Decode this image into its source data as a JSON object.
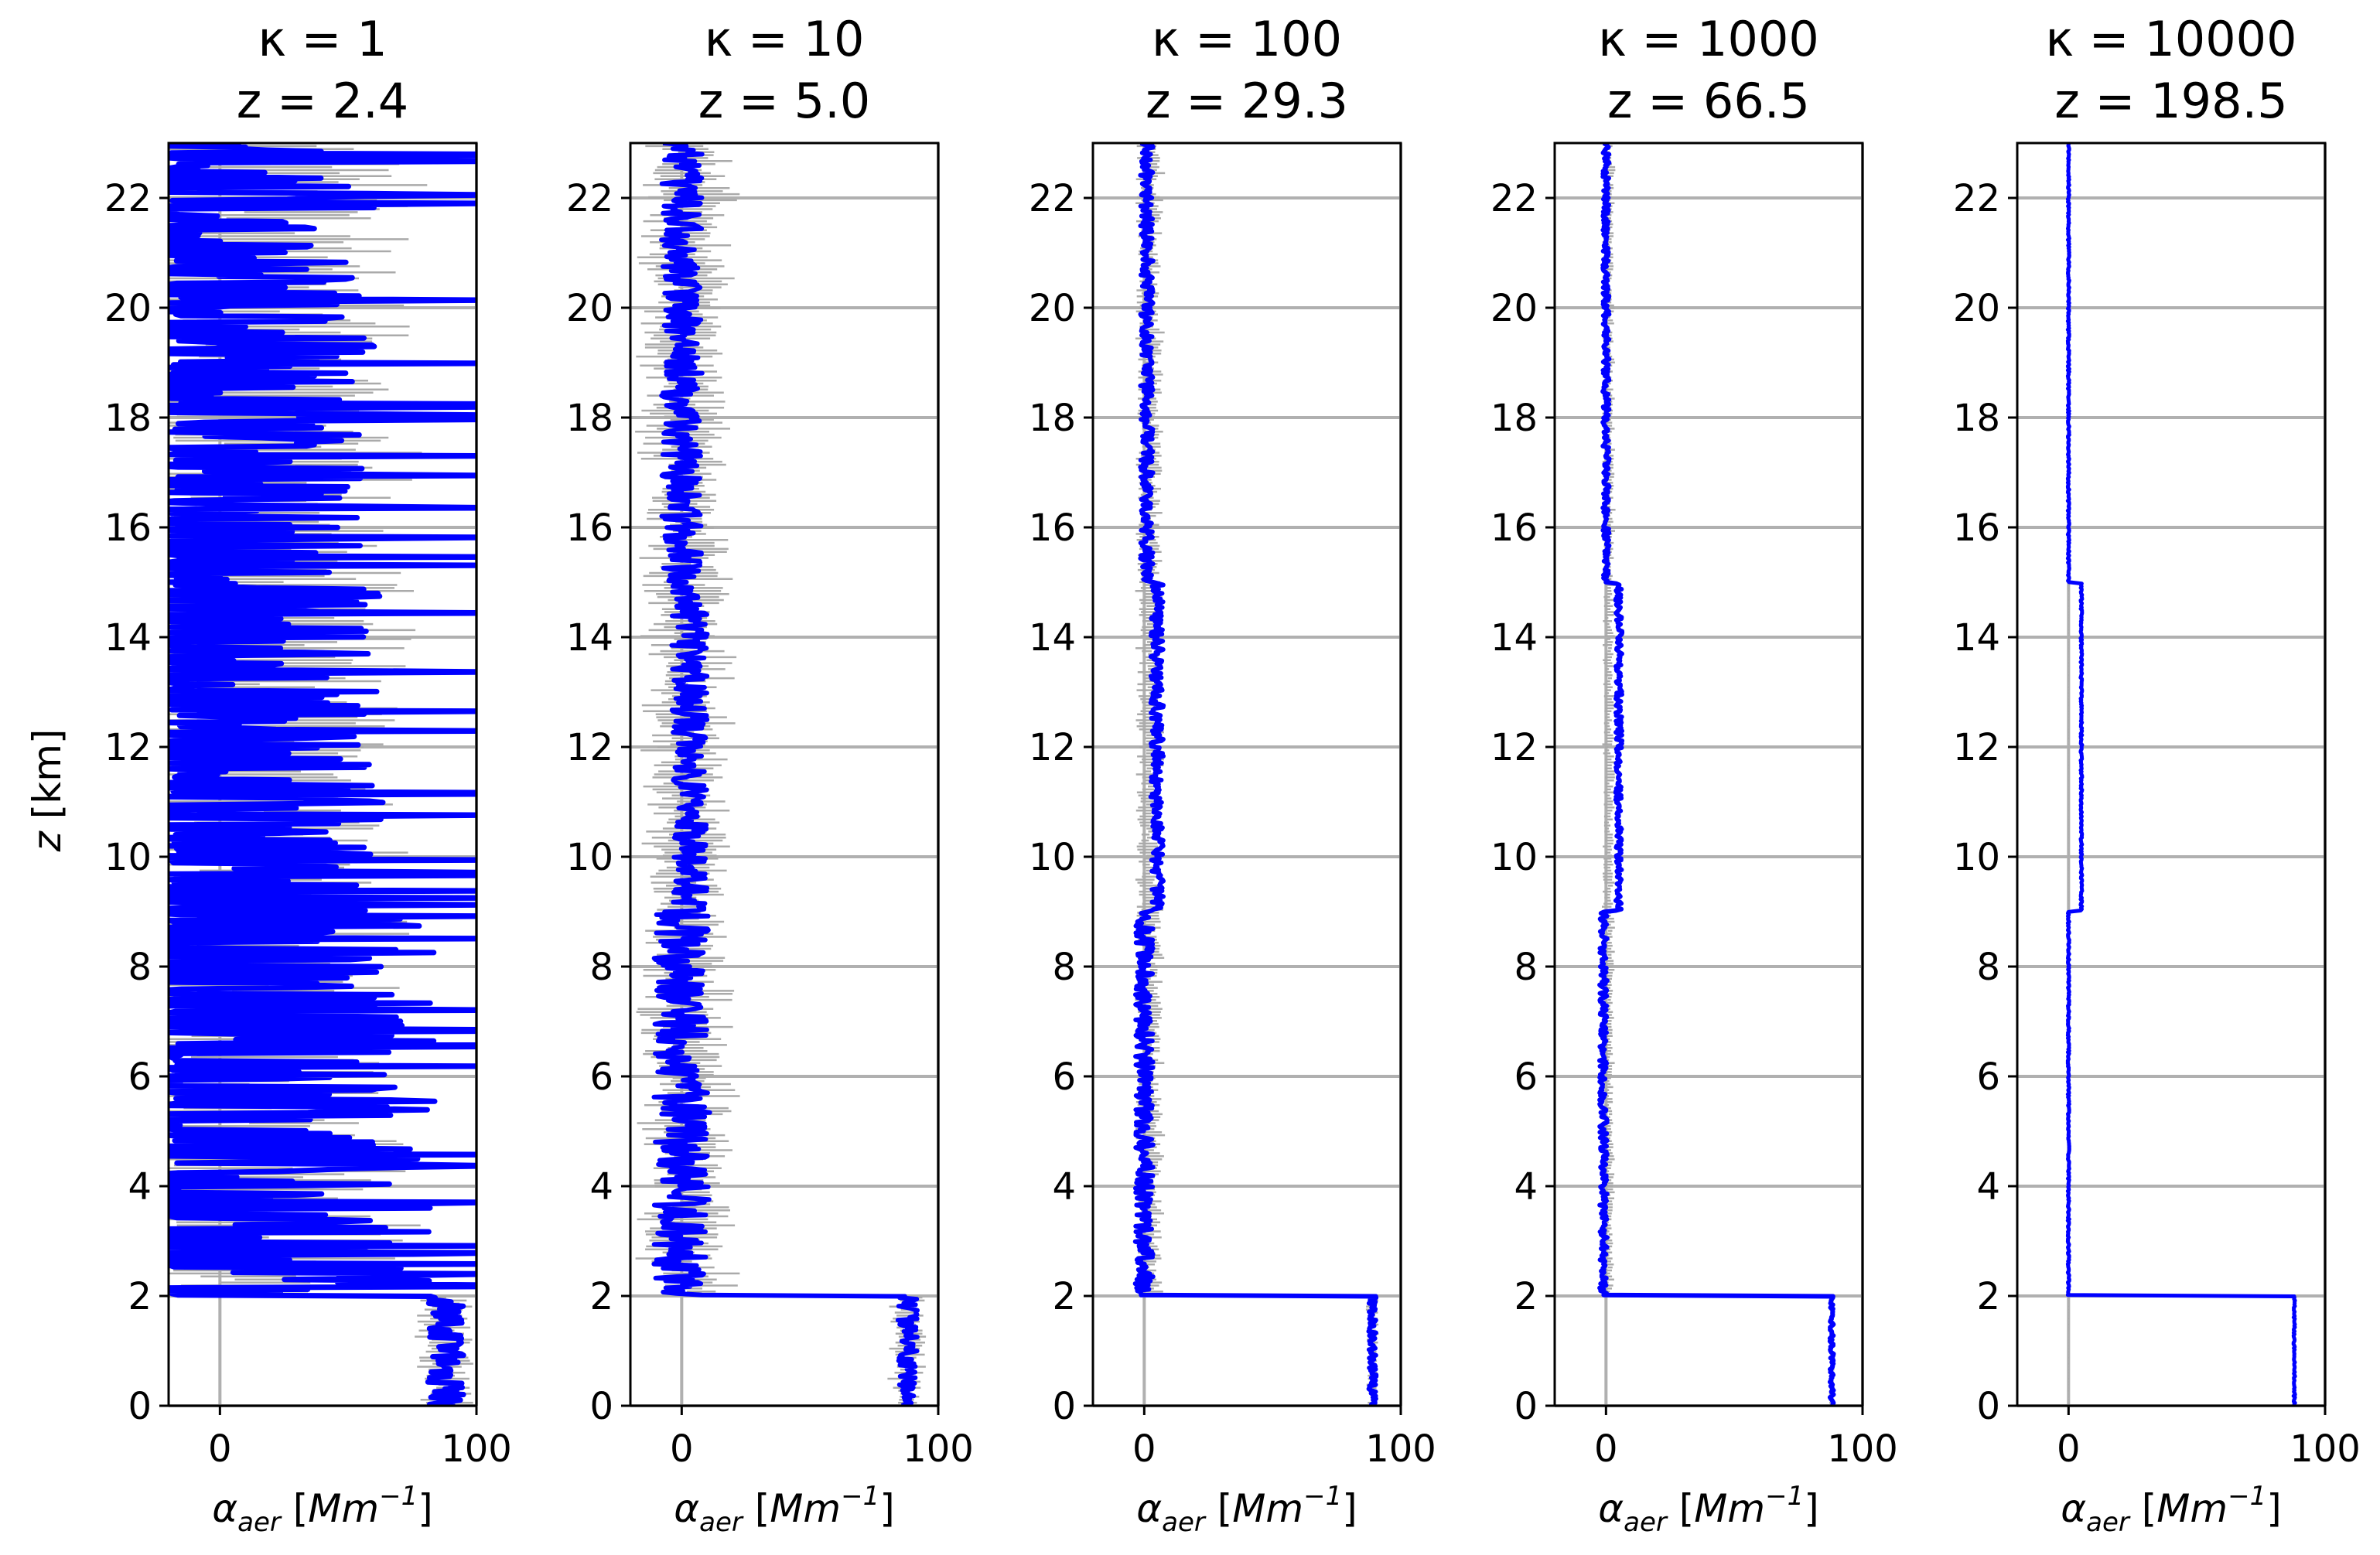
{
  "figure": {
    "ylabel_prefix": "z",
    "ylabel_unit": " [km]",
    "xlabel": {
      "symbol": "α",
      "subscript": "aer",
      "unit_open": " [",
      "unit_base": "Mm",
      "unit_exp": "−1",
      "unit_close": "]"
    }
  },
  "chart_data": [
    {
      "type": "line",
      "title_kappa": "κ = 1",
      "title_z": "z = 2.4",
      "xlim": [
        -20,
        100
      ],
      "ylim": [
        0,
        23
      ],
      "xticks": [
        0,
        100
      ],
      "xtick_labels": [
        "0",
        "100"
      ],
      "yticks": [
        0,
        2,
        4,
        6,
        8,
        10,
        12,
        14,
        16,
        18,
        20,
        22
      ],
      "ytick_labels": [
        "0",
        "2",
        "4",
        "6",
        "8",
        "10",
        "12",
        "14",
        "16",
        "18",
        "20",
        "22"
      ],
      "grid": true,
      "series": [
        {
          "name": "retrieved profile",
          "color": "#0000ff",
          "style": "heavy noise",
          "layers": [
            {
              "z": [
                0,
                2
              ],
              "mean": 88,
              "spread": 14
            },
            {
              "z": [
                2,
                9
              ],
              "mean": 20,
              "spread": 80
            },
            {
              "z": [
                9,
                15
              ],
              "mean": 12,
              "spread": 65
            },
            {
              "z": [
                15,
                23
              ],
              "mean": 5,
              "spread": 70
            }
          ]
        },
        {
          "name": "uncertainty",
          "color": "#aaaaaa",
          "style": "error bars",
          "layers": [
            {
              "z": [
                0,
                2
              ],
              "mean": 88,
              "spread": 20
            },
            {
              "z": [
                2,
                23
              ],
              "mean": 15,
              "spread": 95
            }
          ]
        }
      ]
    },
    {
      "type": "line",
      "title_kappa": "κ = 10",
      "title_z": "z = 5.0",
      "xlim": [
        -20,
        100
      ],
      "ylim": [
        0,
        23
      ],
      "xticks": [
        0,
        100
      ],
      "xtick_labels": [
        "0",
        "100"
      ],
      "yticks": [
        0,
        2,
        4,
        6,
        8,
        10,
        12,
        14,
        16,
        18,
        20,
        22
      ],
      "ytick_labels": [
        "0",
        "2",
        "4",
        "6",
        "8",
        "10",
        "12",
        "14",
        "16",
        "18",
        "20",
        "22"
      ],
      "grid": true,
      "series": [
        {
          "name": "retrieved profile",
          "color": "#0000ff",
          "style": "noise",
          "layers": [
            {
              "z": [
                0,
                2
              ],
              "mean": 88,
              "spread": 8
            },
            {
              "z": [
                2,
                9
              ],
              "mean": 0,
              "spread": 22
            },
            {
              "z": [
                9,
                15
              ],
              "mean": 3,
              "spread": 14
            },
            {
              "z": [
                15,
                23
              ],
              "mean": 0,
              "spread": 16
            }
          ]
        },
        {
          "name": "uncertainty",
          "color": "#aaaaaa",
          "style": "error bars",
          "layers": [
            {
              "z": [
                0,
                2
              ],
              "mean": 88,
              "spread": 12
            },
            {
              "z": [
                2,
                23
              ],
              "mean": 2,
              "spread": 30
            }
          ]
        }
      ]
    },
    {
      "type": "line",
      "title_kappa": "κ = 100",
      "title_z": "z = 29.3",
      "xlim": [
        -20,
        100
      ],
      "ylim": [
        0,
        23
      ],
      "xticks": [
        0,
        100
      ],
      "xtick_labels": [
        "0",
        "100"
      ],
      "yticks": [
        0,
        2,
        4,
        6,
        8,
        10,
        12,
        14,
        16,
        18,
        20,
        22
      ],
      "ytick_labels": [
        "0",
        "2",
        "4",
        "6",
        "8",
        "10",
        "12",
        "14",
        "16",
        "18",
        "20",
        "22"
      ],
      "grid": true,
      "series": [
        {
          "name": "retrieved profile",
          "color": "#0000ff",
          "style": "noise",
          "layers": [
            {
              "z": [
                0,
                2
              ],
              "mean": 89,
              "spread": 3
            },
            {
              "z": [
                2,
                9
              ],
              "mean": 0,
              "spread": 7
            },
            {
              "z": [
                9,
                15
              ],
              "mean": 5,
              "spread": 5
            },
            {
              "z": [
                15,
                23
              ],
              "mean": 1,
              "spread": 5
            }
          ]
        },
        {
          "name": "uncertainty",
          "color": "#aaaaaa",
          "style": "error bars",
          "layers": [
            {
              "z": [
                0,
                2
              ],
              "mean": 89,
              "spread": 4
            },
            {
              "z": [
                2,
                23
              ],
              "mean": 2,
              "spread": 9
            }
          ]
        }
      ]
    },
    {
      "type": "line",
      "title_kappa": "κ = 1000",
      "title_z": "z = 66.5",
      "xlim": [
        -20,
        100
      ],
      "ylim": [
        0,
        23
      ],
      "xticks": [
        0,
        100
      ],
      "xtick_labels": [
        "0",
        "100"
      ],
      "yticks": [
        0,
        2,
        4,
        6,
        8,
        10,
        12,
        14,
        16,
        18,
        20,
        22
      ],
      "ytick_labels": [
        "0",
        "2",
        "4",
        "6",
        "8",
        "10",
        "12",
        "14",
        "16",
        "18",
        "20",
        "22"
      ],
      "grid": true,
      "series": [
        {
          "name": "retrieved profile",
          "color": "#0000ff",
          "style": "noise",
          "layers": [
            {
              "z": [
                0,
                2
              ],
              "mean": 88,
              "spread": 1.5
            },
            {
              "z": [
                2,
                9
              ],
              "mean": -1,
              "spread": 3
            },
            {
              "z": [
                9,
                15
              ],
              "mean": 5,
              "spread": 2.5
            },
            {
              "z": [
                15,
                23
              ],
              "mean": 0,
              "spread": 2.5
            }
          ]
        },
        {
          "name": "uncertainty",
          "color": "#aaaaaa",
          "style": "error bars",
          "layers": [
            {
              "z": [
                0,
                2
              ],
              "mean": 88,
              "spread": 2
            },
            {
              "z": [
                2,
                23
              ],
              "mean": 1,
              "spread": 4
            }
          ]
        }
      ]
    },
    {
      "type": "line",
      "title_kappa": "κ = 10000",
      "title_z": "z = 198.5",
      "xlim": [
        -20,
        100
      ],
      "ylim": [
        0,
        23
      ],
      "xticks": [
        0,
        100
      ],
      "xtick_labels": [
        "0",
        "100"
      ],
      "yticks": [
        0,
        2,
        4,
        6,
        8,
        10,
        12,
        14,
        16,
        18,
        20,
        22
      ],
      "ytick_labels": [
        "0",
        "2",
        "4",
        "6",
        "8",
        "10",
        "12",
        "14",
        "16",
        "18",
        "20",
        "22"
      ],
      "grid": true,
      "series": [
        {
          "name": "retrieved profile",
          "color": "#0000ff",
          "style": "step",
          "layers": [
            {
              "z": [
                0,
                2
              ],
              "mean": 88,
              "spread": 0.6
            },
            {
              "z": [
                2,
                9
              ],
              "mean": 0,
              "spread": 0.6
            },
            {
              "z": [
                9,
                15
              ],
              "mean": 5,
              "spread": 0.6
            },
            {
              "z": [
                15,
                23
              ],
              "mean": 0,
              "spread": 0.6
            }
          ]
        },
        {
          "name": "uncertainty",
          "color": "#aaaaaa",
          "style": "error bars",
          "layers": [
            {
              "z": [
                0,
                23
              ],
              "mean": 0,
              "spread": 0.3
            }
          ]
        }
      ]
    }
  ]
}
